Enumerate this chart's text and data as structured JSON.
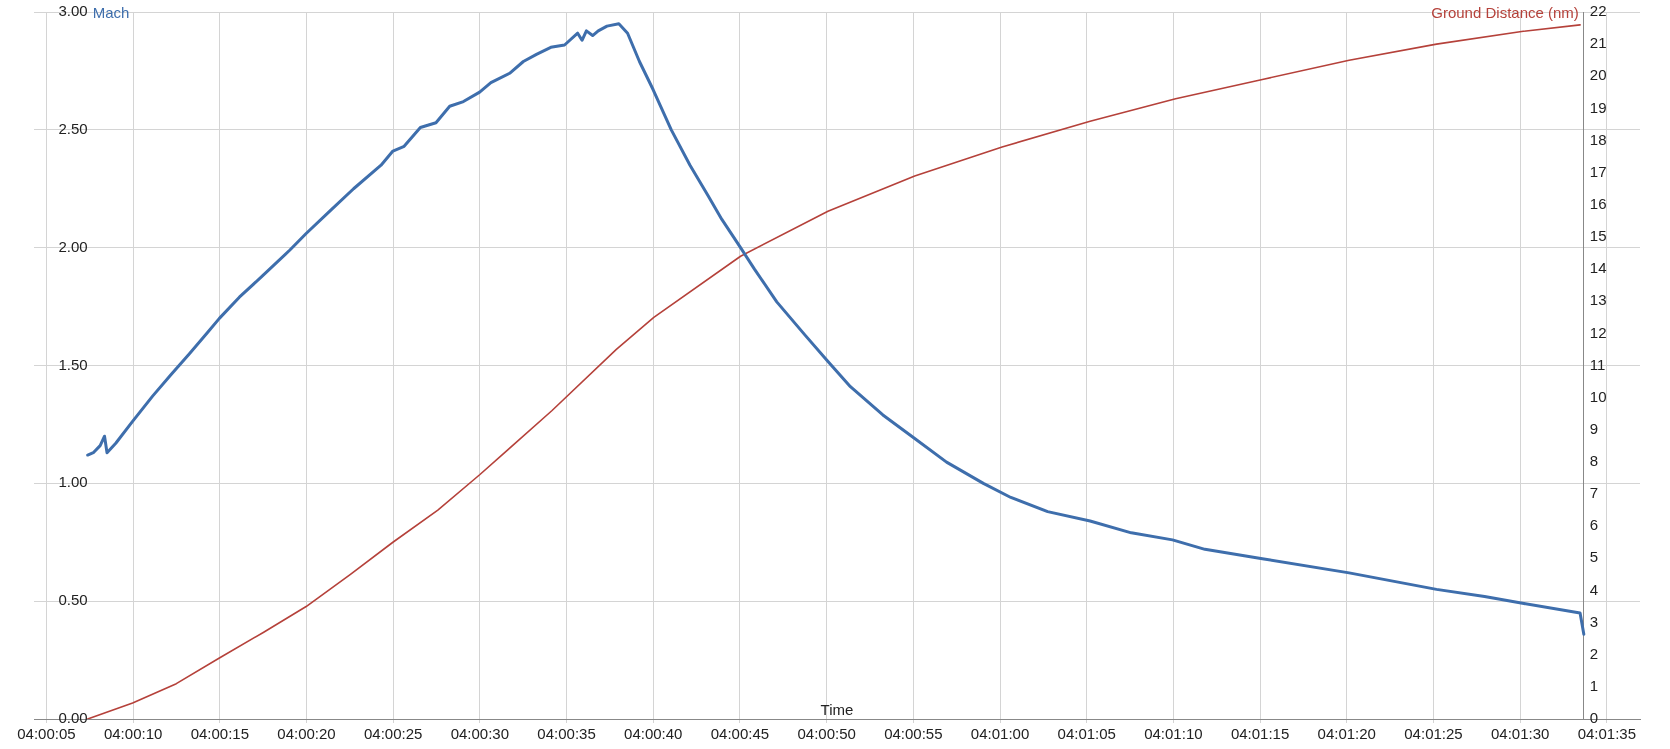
{
  "chart_data": {
    "type": "line",
    "xlabel": "Time",
    "ylabel": "Mach",
    "y2label": "Ground Distance (nm)",
    "xlim": [
      4.00119,
      4.02692
    ],
    "xticks": [
      {
        "value": 4.001389,
        "label": "04:00:05"
      },
      {
        "value": 4.002778,
        "label": "04:00:10"
      },
      {
        "value": 4.004167,
        "label": "04:00:15"
      },
      {
        "value": 4.005556,
        "label": "04:00:20"
      },
      {
        "value": 4.006944,
        "label": "04:00:25"
      },
      {
        "value": 4.008333,
        "label": "04:00:30"
      },
      {
        "value": 4.009722,
        "label": "04:00:35"
      },
      {
        "value": 4.011111,
        "label": "04:00:40"
      },
      {
        "value": 4.0125,
        "label": "04:00:45"
      },
      {
        "value": 4.013889,
        "label": "04:00:50"
      },
      {
        "value": 4.015278,
        "label": "04:00:55"
      },
      {
        "value": 4.016667,
        "label": "04:01:00"
      },
      {
        "value": 4.018056,
        "label": "04:01:05"
      },
      {
        "value": 4.019444,
        "label": "04:01:10"
      },
      {
        "value": 4.020833,
        "label": "04:01:15"
      },
      {
        "value": 4.022222,
        "label": "04:01:20"
      },
      {
        "value": 4.023611,
        "label": "04:01:25"
      },
      {
        "value": 4.025,
        "label": "04:01:30"
      },
      {
        "value": 4.026389,
        "label": "04:01:35"
      }
    ],
    "ylim": [
      0,
      3
    ],
    "yticks": [
      {
        "value": 0,
        "label": "0.00"
      },
      {
        "value": 0.5,
        "label": "0.50"
      },
      {
        "value": 1,
        "label": "1.00"
      },
      {
        "value": 1.5,
        "label": "1.50"
      },
      {
        "value": 2,
        "label": "2.00"
      },
      {
        "value": 2.5,
        "label": "2.50"
      },
      {
        "value": 3,
        "label": "3.00"
      }
    ],
    "y2lim": [
      0,
      22
    ],
    "y2ticks": [
      0,
      1,
      2,
      3,
      4,
      5,
      6,
      7,
      8,
      9,
      10,
      11,
      12,
      13,
      14,
      15,
      16,
      17,
      18,
      19,
      20,
      21,
      22
    ],
    "grid": true,
    "legend": false,
    "marker": "none",
    "line_style": "solid",
    "series": [
      {
        "color": "#3e6eac",
        "x": [
          4.00205,
          4.00214,
          4.00225,
          4.00232,
          4.00236,
          4.0025,
          4.00276,
          4.00309,
          4.00338,
          4.00368,
          4.00397,
          4.00416,
          4.00448,
          4.00485,
          4.00529,
          4.00555,
          4.00595,
          4.00631,
          4.00675,
          4.00694,
          4.00712,
          4.00738,
          4.00763,
          4.00785,
          4.00807,
          4.00833,
          4.00851,
          4.00881,
          4.00903,
          4.00924,
          4.00947,
          4.00969,
          4.0099,
          4.00997,
          4.01004,
          4.01014,
          4.01023,
          4.01037,
          4.01056,
          4.0107,
          4.01089,
          4.01111,
          4.0114,
          4.0117,
          4.01199,
          4.01221,
          4.01251,
          4.01273,
          4.01309,
          4.01354,
          4.0139,
          4.01427,
          4.01479,
          4.0153,
          4.01581,
          4.0164,
          4.01684,
          4.01743,
          4.01811,
          4.01877,
          4.01943,
          4.01995,
          4.02087,
          4.02226,
          4.02366,
          4.02443,
          4.02506,
          4.02596,
          4.02602
        ],
        "values": [
          1.12,
          1.13,
          1.16,
          1.2,
          1.13,
          1.17,
          1.26,
          1.37,
          1.46,
          1.55,
          1.64,
          1.7,
          1.79,
          1.88,
          1.99,
          2.06,
          2.16,
          2.25,
          2.35,
          2.41,
          2.43,
          2.51,
          2.53,
          2.6,
          2.62,
          2.66,
          2.7,
          2.74,
          2.79,
          2.82,
          2.85,
          2.86,
          2.91,
          2.88,
          2.92,
          2.9,
          2.92,
          2.94,
          2.95,
          2.91,
          2.79,
          2.67,
          2.5,
          2.35,
          2.22,
          2.12,
          2.0,
          1.91,
          1.77,
          1.63,
          1.52,
          1.41,
          1.29,
          1.19,
          1.09,
          1.0,
          0.94,
          0.88,
          0.84,
          0.79,
          0.76,
          0.72,
          0.68,
          0.62,
          0.55,
          0.52,
          0.49,
          0.45,
          0.36
        ]
      },
      {
        "color": "#b5413a",
        "axis": "y2",
        "x": [
          4.00205,
          4.00277,
          4.00347,
          4.00416,
          4.00487,
          4.00555,
          4.00626,
          4.00694,
          4.00766,
          4.00833,
          4.00949,
          4.01052,
          4.01112,
          4.01251,
          4.01391,
          4.0153,
          4.0167,
          4.01811,
          4.01948,
          4.02087,
          4.02226,
          4.02366,
          4.02505,
          4.02596
        ],
        "values": [
          0,
          0.5,
          1.1,
          1.9,
          2.7,
          3.5,
          4.5,
          5.5,
          6.5,
          7.6,
          9.6,
          11.5,
          12.5,
          14.4,
          15.8,
          16.9,
          17.8,
          18.6,
          19.3,
          19.9,
          20.5,
          21.0,
          21.4,
          21.6
        ]
      }
    ]
  }
}
